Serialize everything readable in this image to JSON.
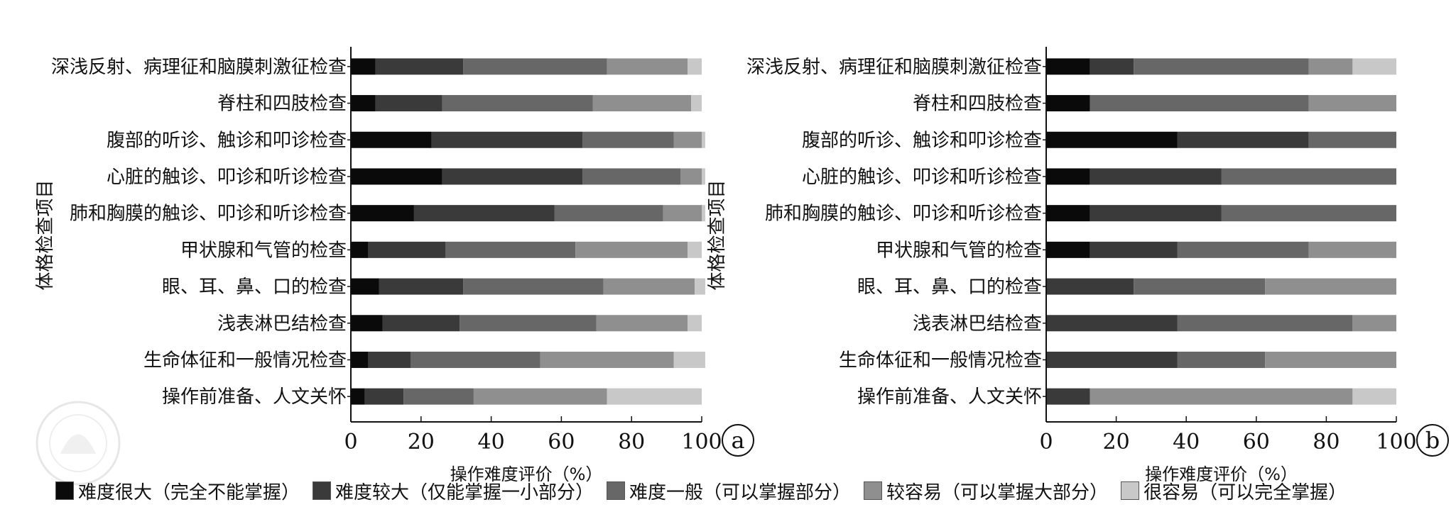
{
  "colors": [
    "#0a0a0a",
    "#3a3a3a",
    "#676767",
    "#8f8f8f",
    "#c8c8c8",
    "#ebebeb"
  ],
  "legend": [
    {
      "label": "难度很大（完全不能掌握）",
      "color": "#0a0a0a"
    },
    {
      "label": "难度较大（仅能掌握一小部分）",
      "color": "#3a3a3a"
    },
    {
      "label": "难度一般（可以掌握部分）",
      "color": "#676767"
    },
    {
      "label": "较容易（可以掌握大部分）",
      "color": "#8f8f8f"
    },
    {
      "label": "很容易（可以完全掌握）",
      "color": "#c8c8c8"
    }
  ],
  "chart_data": [
    {
      "type": "bar",
      "orientation": "horizontal",
      "stacked": true,
      "panel_label": "a",
      "xlabel": "操作难度评价（%）",
      "ylabel": "体格检查项目",
      "xlim": [
        0,
        100
      ],
      "xticks": [
        0,
        20,
        40,
        60,
        80,
        100
      ],
      "categories": [
        "深浅反射、病理征和脑膜刺激征检查",
        "脊柱和四肢检查",
        "腹部的听诊、触诊和叩诊检查",
        "心脏的触诊、叩诊和听诊检查",
        "肺和胸膜的触诊、叩诊和听诊检查",
        "甲状腺和气管的检查",
        "眼、耳、鼻、口的检查",
        "浅表淋巴结检查",
        "生命体征和一般情况检查",
        "操作前准备、人文关怀"
      ],
      "series": [
        {
          "values": [
            7,
            7,
            23,
            26,
            18,
            5,
            8,
            9,
            5,
            4
          ]
        },
        {
          "values": [
            25,
            19,
            43,
            40,
            40,
            22,
            24,
            22,
            12,
            11
          ]
        },
        {
          "values": [
            41,
            43,
            26,
            28,
            31,
            37,
            40,
            39,
            37,
            20
          ]
        },
        {
          "values": [
            23,
            28,
            8,
            6,
            11,
            32,
            26,
            26,
            38,
            38
          ]
        },
        {
          "values": [
            4,
            3,
            1,
            1,
            1,
            4,
            3,
            4,
            9,
            27
          ]
        }
      ]
    },
    {
      "type": "bar",
      "orientation": "horizontal",
      "stacked": true,
      "panel_label": "b",
      "xlabel": "操作难度评价（%）",
      "ylabel": "体格检查项目",
      "xlim": [
        0,
        100
      ],
      "xticks": [
        0,
        20,
        40,
        60,
        80,
        100
      ],
      "categories": [
        "深浅反射、病理征和脑膜刺激征检查",
        "脊柱和四肢检查",
        "腹部的听诊、触诊和叩诊检查",
        "心脏的触诊、叩诊和听诊检查",
        "肺和胸膜的触诊、叩诊和听诊检查",
        "甲状腺和气管的检查",
        "眼、耳、鼻、口的检查",
        "浅表淋巴结检查",
        "生命体征和一般情况检查",
        "操作前准备、人文关怀"
      ],
      "series": [
        {
          "values": [
            12.5,
            12.5,
            37.5,
            12.5,
            12.5,
            12.5,
            0,
            0,
            0,
            0
          ]
        },
        {
          "values": [
            12.5,
            0,
            37.5,
            37.5,
            37.5,
            25,
            25,
            37.5,
            37.5,
            12.5
          ]
        },
        {
          "values": [
            50,
            62.5,
            25,
            50,
            50,
            37.5,
            37.5,
            50,
            25,
            0
          ]
        },
        {
          "values": [
            12.5,
            25,
            0,
            0,
            0,
            25,
            37.5,
            12.5,
            37.5,
            75
          ]
        },
        {
          "values": [
            12.5,
            0,
            0,
            0,
            0,
            0,
            0,
            0,
            0,
            12.5
          ]
        }
      ]
    }
  ]
}
